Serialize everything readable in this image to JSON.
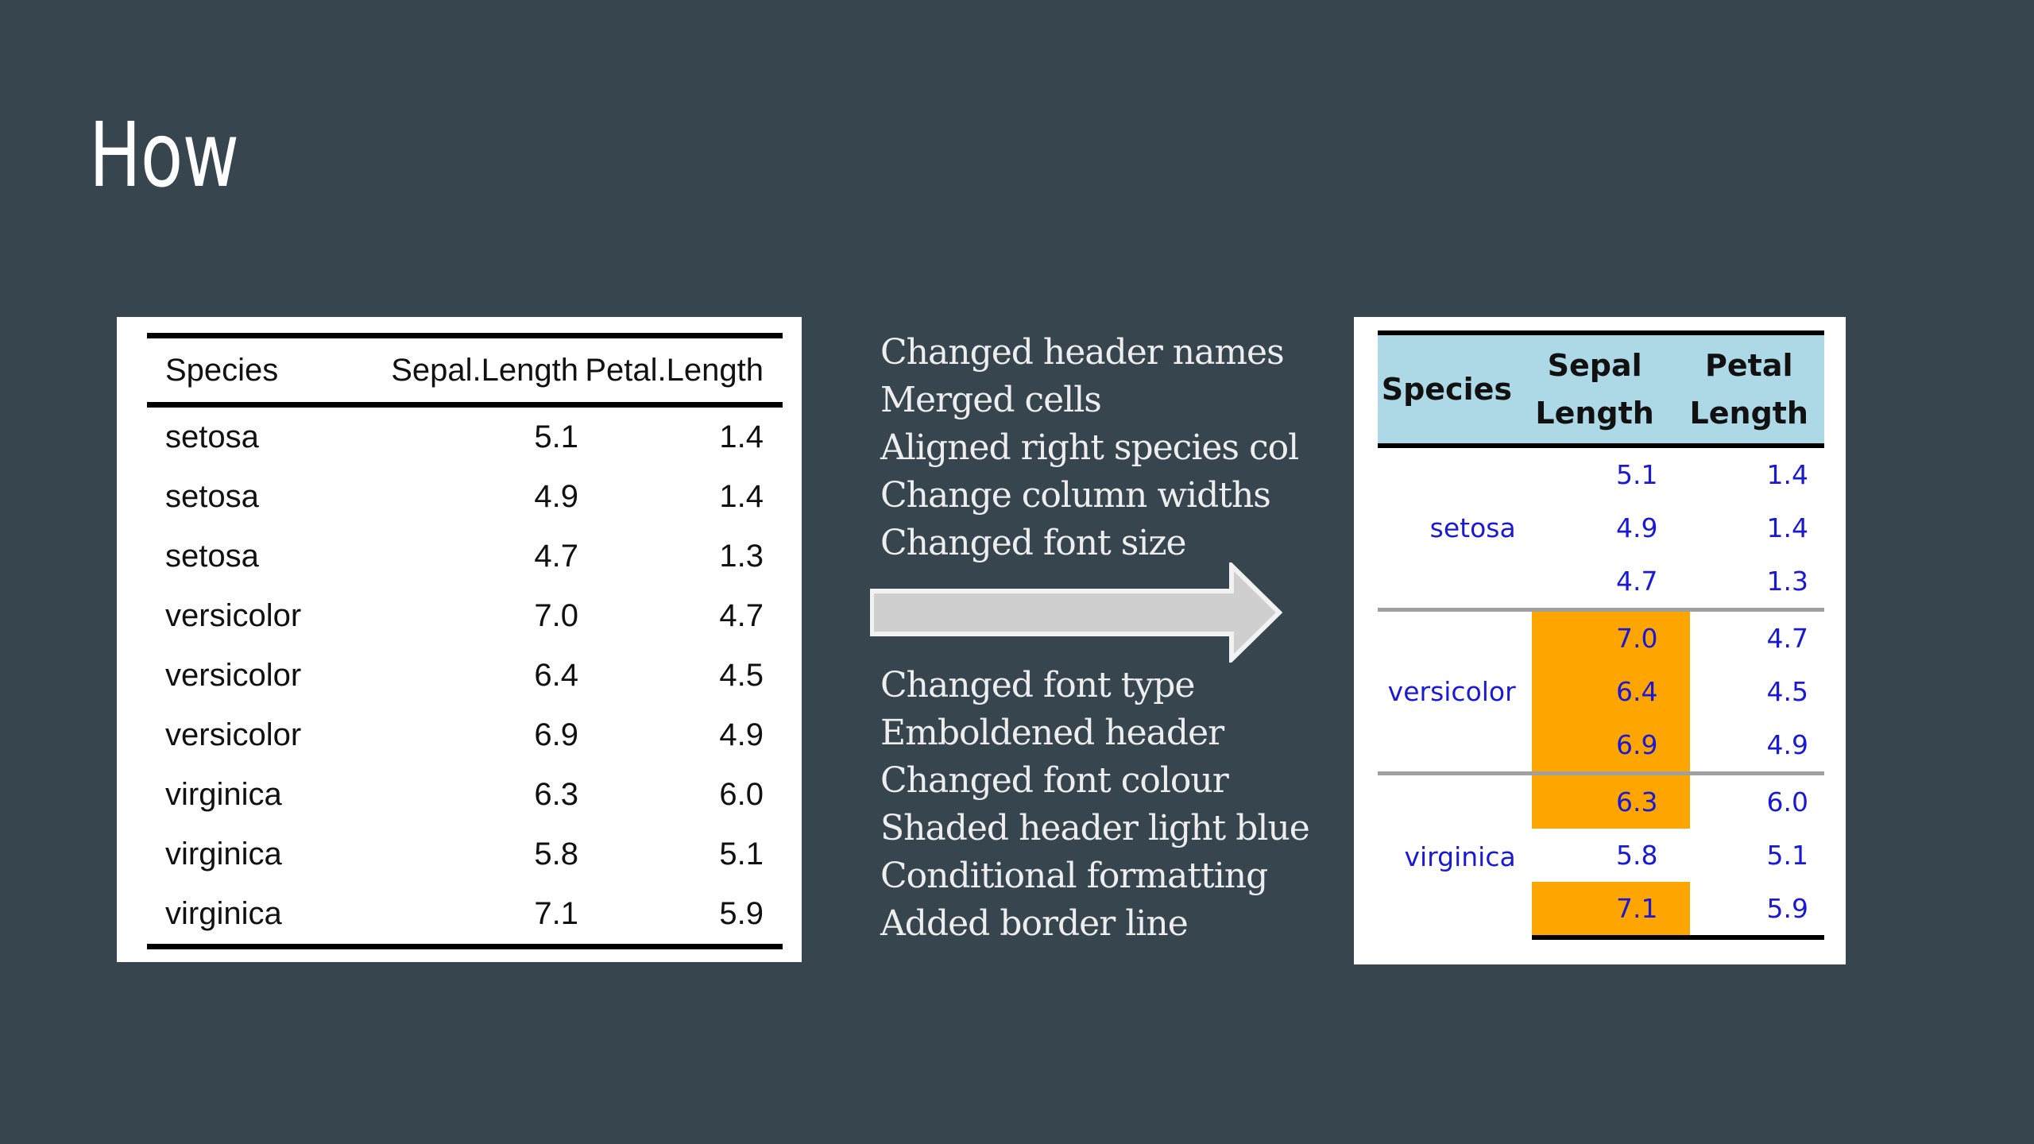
{
  "slide": {
    "title": "How",
    "background_color": "#37454f"
  },
  "before_table": {
    "headers": [
      "Species",
      "Sepal.Length",
      "Petal.Length"
    ],
    "rows": [
      {
        "species": "setosa",
        "sepal_length": "5.1",
        "petal_length": "1.4"
      },
      {
        "species": "setosa",
        "sepal_length": "4.9",
        "petal_length": "1.4"
      },
      {
        "species": "setosa",
        "sepal_length": "4.7",
        "petal_length": "1.3"
      },
      {
        "species": "versicolor",
        "sepal_length": "7.0",
        "petal_length": "4.7"
      },
      {
        "species": "versicolor",
        "sepal_length": "6.4",
        "petal_length": "4.5"
      },
      {
        "species": "versicolor",
        "sepal_length": "6.9",
        "petal_length": "4.9"
      },
      {
        "species": "virginica",
        "sepal_length": "6.3",
        "petal_length": "6.0"
      },
      {
        "species": "virginica",
        "sepal_length": "5.8",
        "petal_length": "5.1"
      },
      {
        "species": "virginica",
        "sepal_length": "7.1",
        "petal_length": "5.9"
      }
    ]
  },
  "notes_top": [
    "Changed header names",
    "Merged cells",
    "Aligned right species col",
    "Change column widths",
    "Changed font size"
  ],
  "notes_bottom": [
    "Changed font type",
    "Emboldened header",
    "Changed font colour",
    "Shaded header light blue",
    "Conditional formatting",
    "Added border line"
  ],
  "arrow": {
    "icon": "right-arrow-icon",
    "fill_color": "#cfcfcf"
  },
  "after_table": {
    "headers": [
      "Species",
      "Sepal Length",
      "Petal Length"
    ],
    "header_background": "#add8e6",
    "text_color": "#1a1ad4",
    "highlight_color": "#ffa500",
    "groups": [
      {
        "species": "setosa",
        "rows": [
          {
            "sepal_length": "5.1",
            "petal_length": "1.4",
            "highlight": false
          },
          {
            "sepal_length": "4.9",
            "petal_length": "1.4",
            "highlight": false
          },
          {
            "sepal_length": "4.7",
            "petal_length": "1.3",
            "highlight": false
          }
        ]
      },
      {
        "species": "versicolor",
        "rows": [
          {
            "sepal_length": "7.0",
            "petal_length": "4.7",
            "highlight": true
          },
          {
            "sepal_length": "6.4",
            "petal_length": "4.5",
            "highlight": true
          },
          {
            "sepal_length": "6.9",
            "petal_length": "4.9",
            "highlight": true
          }
        ]
      },
      {
        "species": "virginica",
        "rows": [
          {
            "sepal_length": "6.3",
            "petal_length": "6.0",
            "highlight": true
          },
          {
            "sepal_length": "5.8",
            "petal_length": "5.1",
            "highlight": false
          },
          {
            "sepal_length": "7.1",
            "petal_length": "5.9",
            "highlight": true
          }
        ]
      }
    ]
  }
}
